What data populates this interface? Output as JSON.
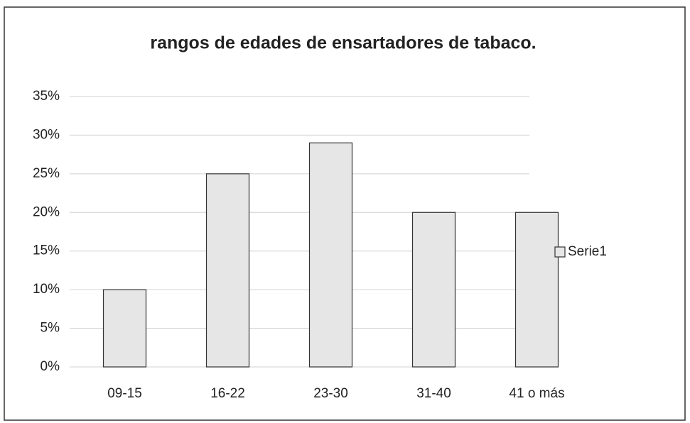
{
  "chart_data": {
    "type": "bar",
    "title": "rangos de edades de ensartadores de tabaco.",
    "categories": [
      "09-15",
      "16-22",
      "23-30",
      "31-40",
      "41 o más"
    ],
    "series": [
      {
        "name": "Serie1",
        "color": "#e6e6e6",
        "values": [
          10,
          25,
          29,
          20,
          20
        ]
      }
    ],
    "ylim": [
      0,
      35
    ],
    "yticks": [
      {
        "value": 0,
        "label": "0%"
      },
      {
        "value": 5,
        "label": "5%"
      },
      {
        "value": 10,
        "label": "10%"
      },
      {
        "value": 15,
        "label": "15%"
      },
      {
        "value": 20,
        "label": "20%"
      },
      {
        "value": 25,
        "label": "25%"
      },
      {
        "value": 30,
        "label": "30%"
      },
      {
        "value": 35,
        "label": "35%"
      }
    ],
    "grid": true,
    "legend": "right"
  }
}
